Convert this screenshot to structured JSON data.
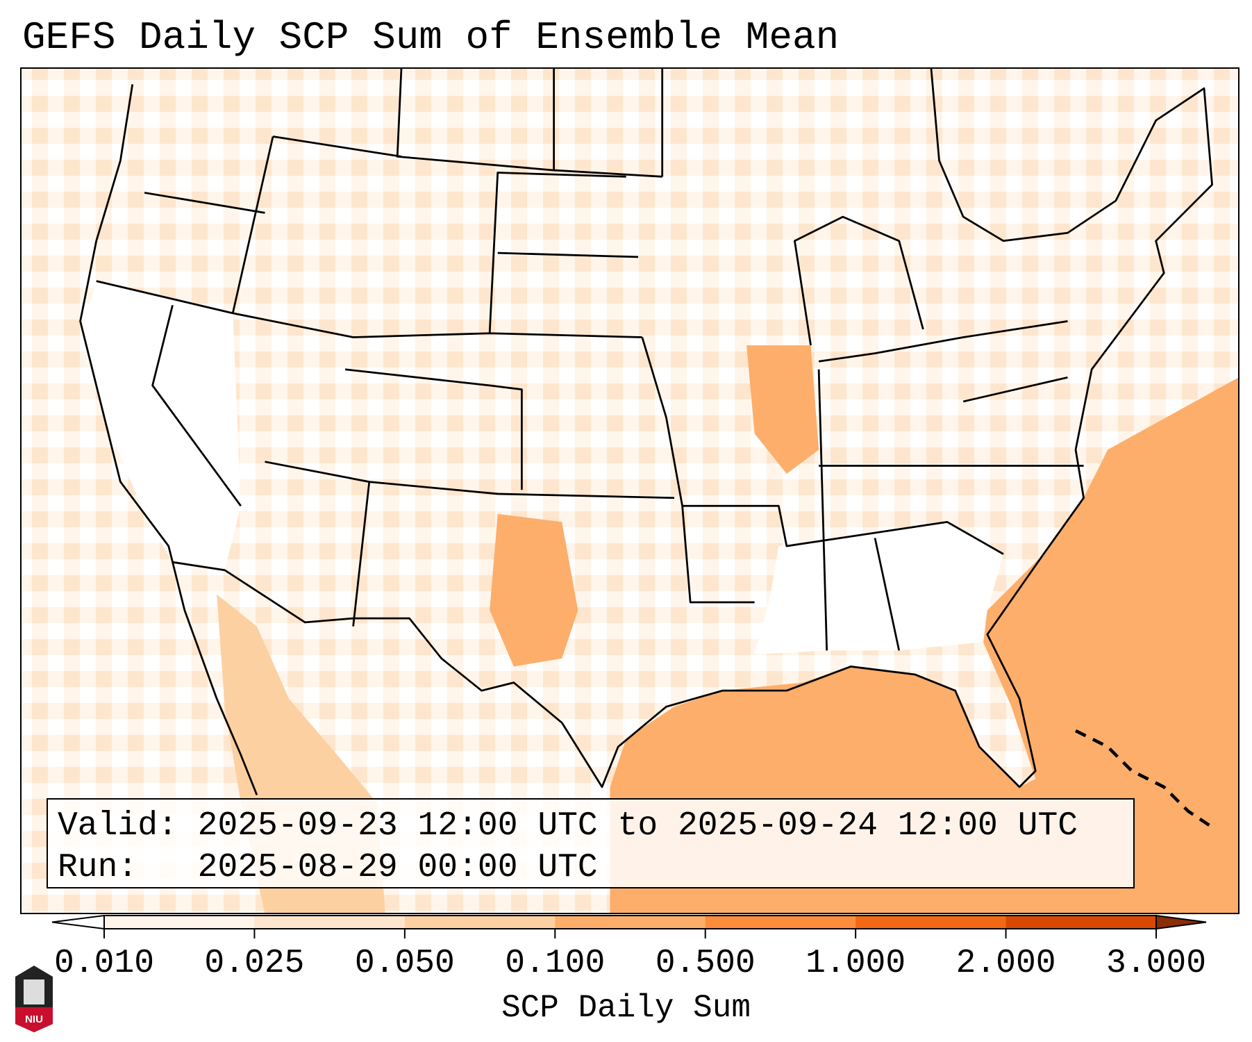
{
  "title": "GEFS Daily SCP Sum of Ensemble Mean",
  "info": {
    "valid_label": "Valid:",
    "valid_value": "2025-09-23 12:00 UTC to 2025-09-24 12:00 UTC",
    "run_label": "Run:",
    "run_value": "2025-08-29 00:00 UTC"
  },
  "colorbar": {
    "label": "SCP Daily Sum",
    "ticks": [
      "0.010",
      "0.025",
      "0.050",
      "0.100",
      "0.500",
      "1.000",
      "2.000",
      "3.000"
    ],
    "colors": [
      "#fff5eb",
      "#fee6ce",
      "#fdd0a2",
      "#fdae6b",
      "#fd8d3c",
      "#f16913",
      "#d94801"
    ],
    "under_color": "#ffffff",
    "over_color": "#8c2d04"
  },
  "logo": {
    "text": "NIU"
  },
  "colors": {
    "ocean": "#fdae6b",
    "land_light": "#fee6ce",
    "land_pale": "#fff5eb"
  }
}
